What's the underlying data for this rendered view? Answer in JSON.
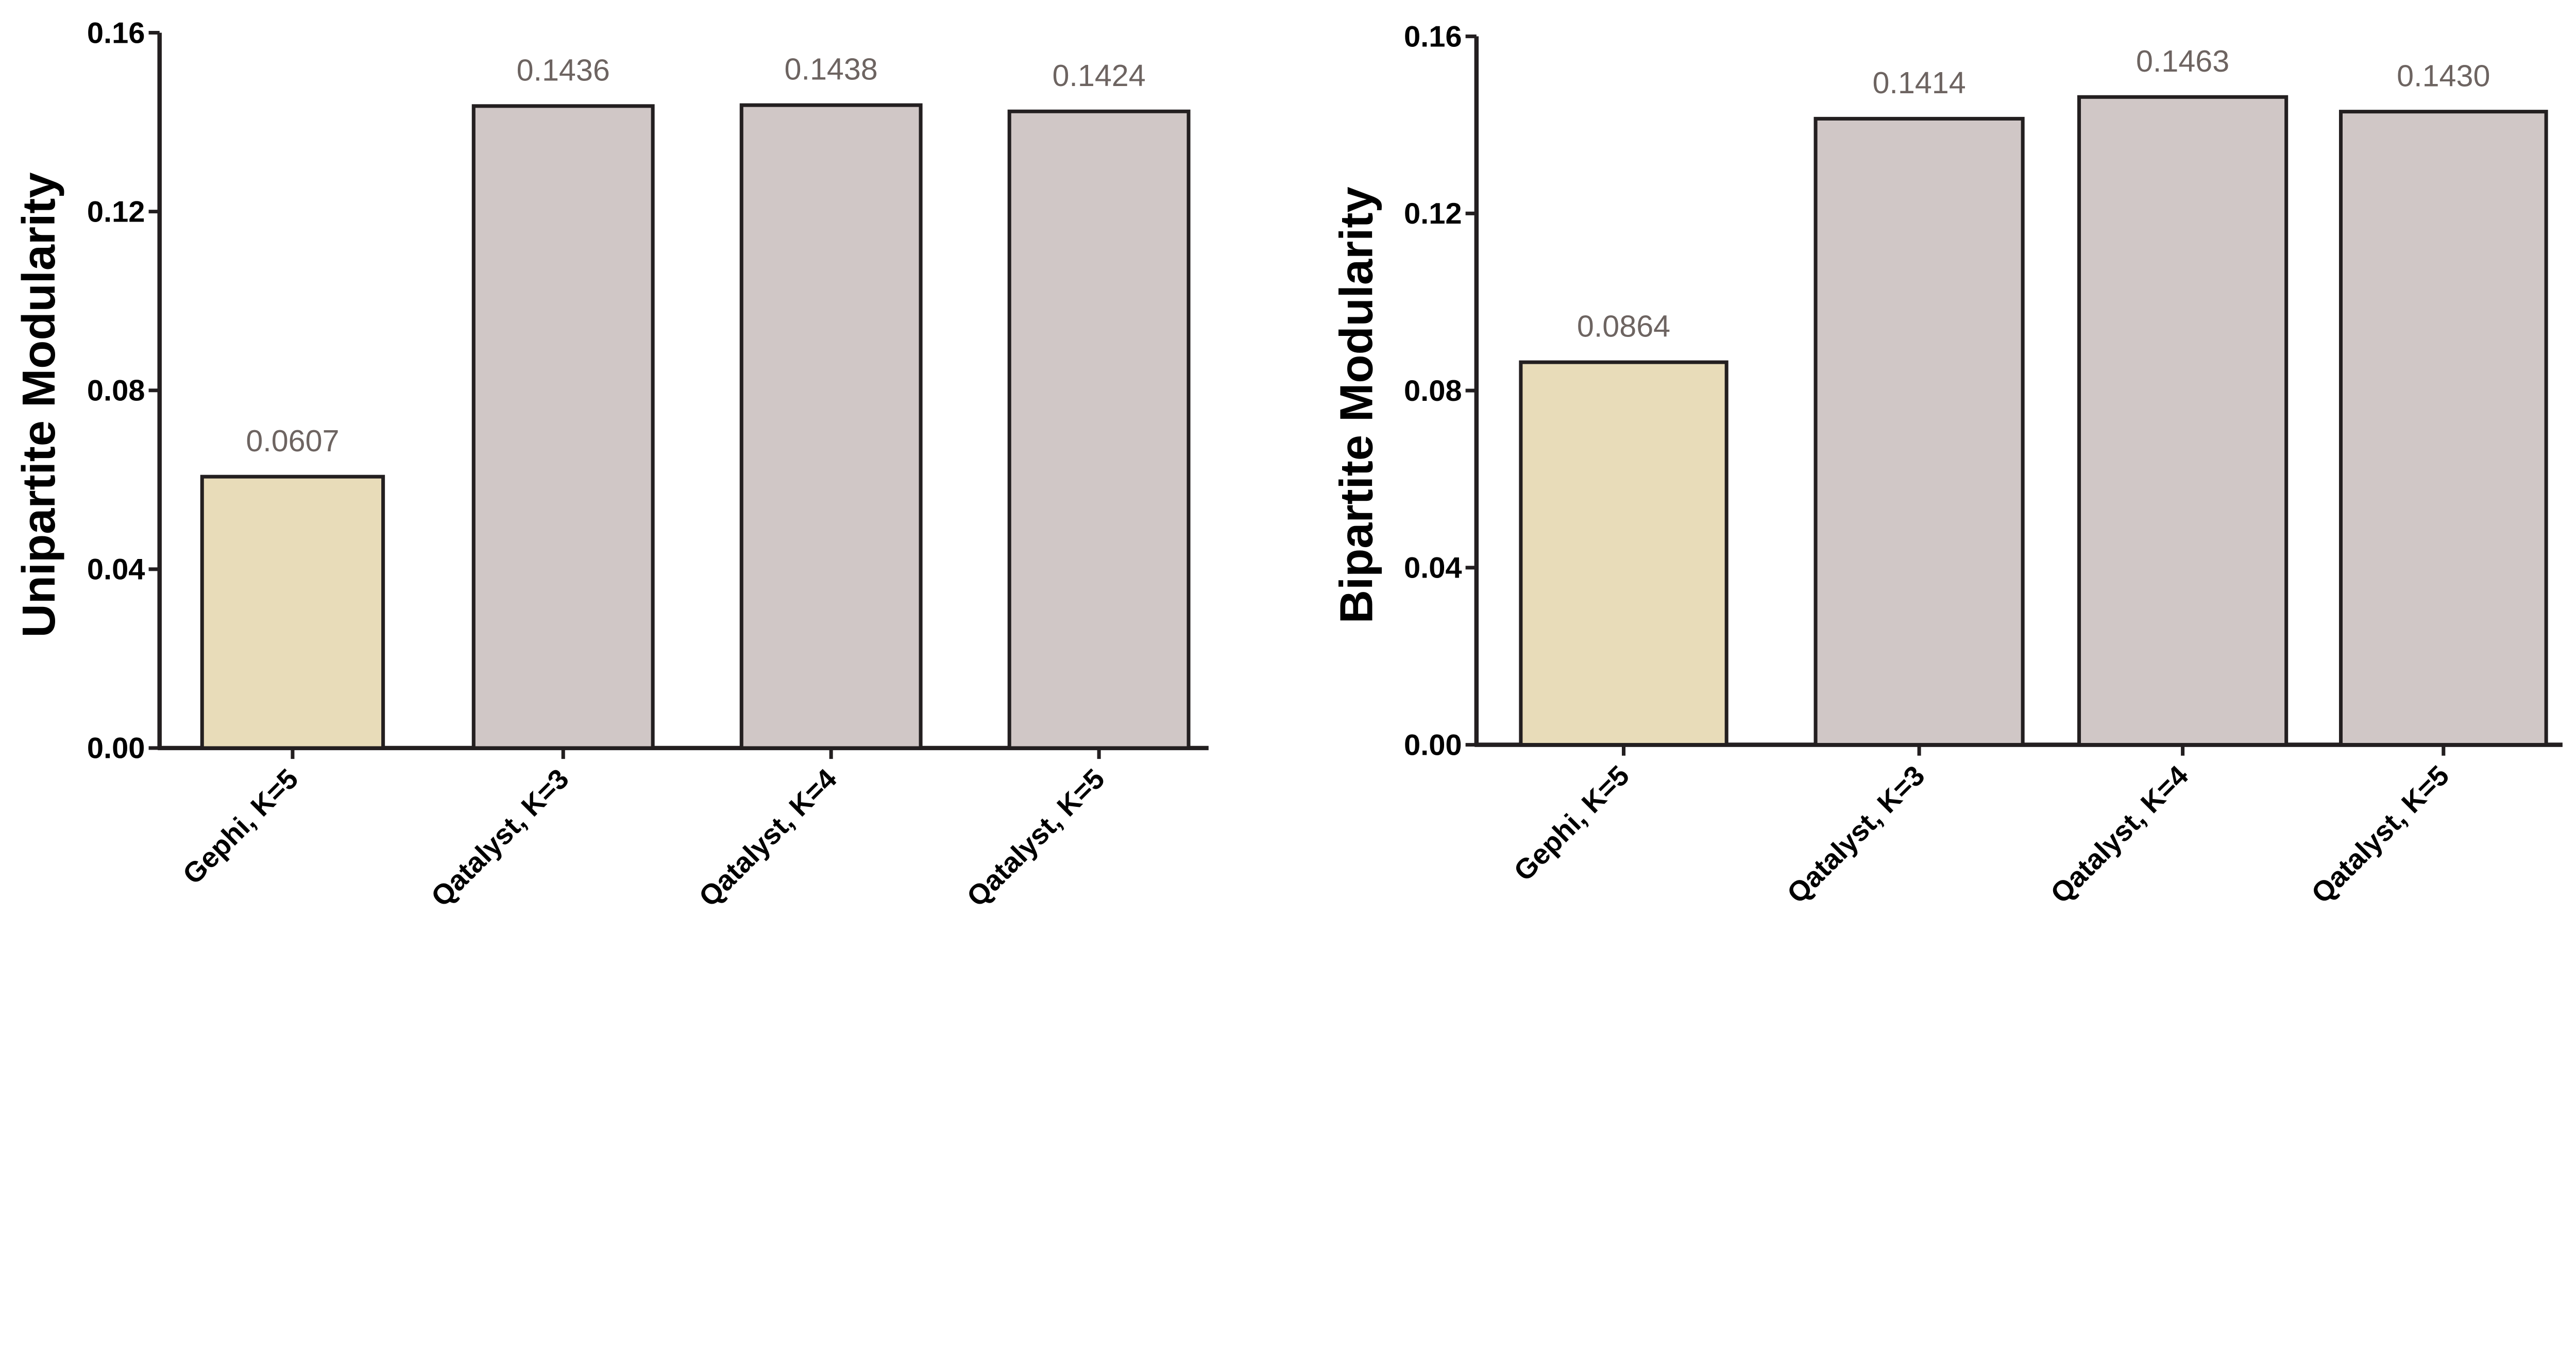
{
  "chart_data": [
    {
      "type": "bar",
      "title": "",
      "xlabel": "",
      "ylabel": "Unipartite Modularity",
      "categories": [
        "Gephi, K=5",
        "Qatalyst, K=3",
        "Qatalyst, K=4",
        "Qatalyst, K=5"
      ],
      "values": [
        0.0607,
        0.1436,
        0.1438,
        0.1424
      ],
      "data_labels": [
        "0.0607",
        "0.1436",
        "0.1438",
        "0.1424"
      ],
      "ylim": [
        0,
        0.16
      ],
      "yticks": [
        "0.00",
        "0.04",
        "0.08",
        "0.12",
        "0.16"
      ],
      "bar_colors": [
        "#e8dcb9",
        "#d0c7c6",
        "#d0c7c6",
        "#d0c7c6"
      ],
      "grid": false
    },
    {
      "type": "bar",
      "title": "",
      "xlabel": "",
      "ylabel": "Bipartite Modularity",
      "categories": [
        "Gephi, K=5",
        "Qatalyst, K=3",
        "Qatalyst, K=4",
        "Qatalyst, K=5"
      ],
      "values": [
        0.0864,
        0.1414,
        0.1463,
        0.143
      ],
      "data_labels": [
        "0.0864",
        "0.1414",
        "0.1463",
        "0.1430"
      ],
      "ylim": [
        0,
        0.16
      ],
      "yticks": [
        "0.00",
        "0.04",
        "0.08",
        "0.12",
        "0.16"
      ],
      "bar_colors": [
        "#e8dcb9",
        "#d0c7c6",
        "#d0c7c6",
        "#d0c7c6"
      ],
      "grid": false
    }
  ]
}
